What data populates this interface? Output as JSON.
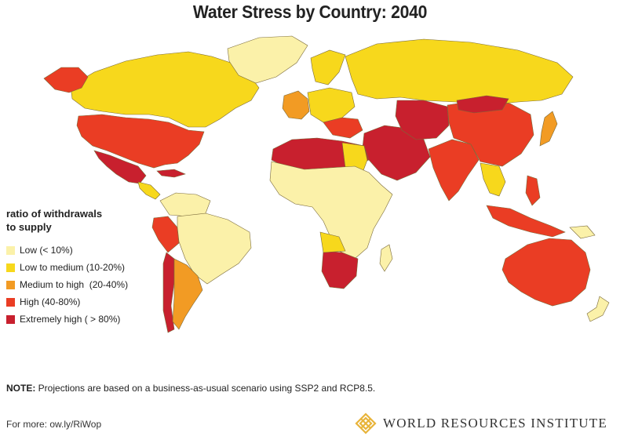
{
  "title": "Water Stress by Country: 2040",
  "legend": {
    "title_line1": "ratio of withdrawals",
    "title_line2": "to supply",
    "items": [
      {
        "label": "Low (< 10%)",
        "color": "#fbf1a9"
      },
      {
        "label": "Low to medium (10-20%)",
        "color": "#f7d81c"
      },
      {
        "label": "Medium to high  (20-40%)",
        "color": "#f29b24"
      },
      {
        "label": "High (40-80%)",
        "color": "#ea3d24"
      },
      {
        "label": "Extremely high ( > 80%)",
        "color": "#c8202e"
      }
    ]
  },
  "note": {
    "label": "NOTE:",
    "text": " Projections are based on a business-as-usual scenario using SSP2 and RCP8.5."
  },
  "more": "For more: ow.ly/RiWop",
  "logo": {
    "text": "WORLD RESOURCES INSTITUTE",
    "icon": "wri-lattice-icon",
    "color": "#e8b43a"
  }
}
